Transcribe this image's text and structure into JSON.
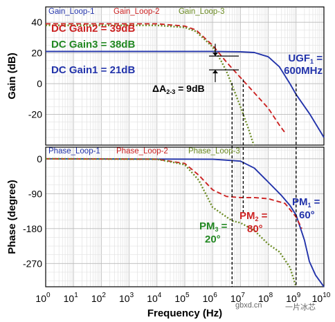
{
  "chart_data": [
    {
      "panel": "gain",
      "type": "line",
      "x_scale": "log",
      "xlim": [
        1,
        10000000000
      ],
      "ylabel": "Gain (dB)",
      "ylim": [
        -40,
        50
      ],
      "yticks": [
        "40",
        "20",
        "0",
        "-20"
      ],
      "grid": true,
      "legend_position": "top-left",
      "series": [
        {
          "name": "Gain_Loop-1",
          "color": "#2233aa",
          "dash": "solid",
          "points": [
            [
              1,
              21
            ],
            [
              100000,
              21
            ],
            [
              1000000,
              21
            ],
            [
              10000000,
              20.8
            ],
            [
              31600000,
              20.3
            ],
            [
              100000000,
              17.5
            ],
            [
              251000000,
              11
            ],
            [
              600000000,
              0
            ],
            [
              1000000000,
              -7
            ],
            [
              3160000000,
              -20
            ],
            [
              10000000000,
              -35
            ]
          ]
        },
        {
          "name": "Gain_Loop-2",
          "color": "#cc2222",
          "dash": "dashed",
          "points": [
            [
              1,
              39
            ],
            [
              10000,
              39
            ],
            [
              100000,
              37.5
            ],
            [
              251000,
              35
            ],
            [
              1000000,
              25
            ],
            [
              3160000,
              14
            ],
            [
              10000000,
              4
            ],
            [
              31600000,
              -6
            ],
            [
              100000000,
              -16
            ],
            [
              251000000,
              -27
            ],
            [
              400000000,
              -32
            ]
          ]
        },
        {
          "name": "Gain_Loop-3",
          "color": "#6a8a22",
          "dash": "dotted",
          "points": [
            [
              1,
              38
            ],
            [
              10000,
              38
            ],
            [
              100000,
              36.7
            ],
            [
              251000,
              34
            ],
            [
              1000000,
              24
            ],
            [
              2000000,
              15
            ],
            [
              3160000,
              8
            ],
            [
              5000000,
              -1
            ],
            [
              10000000,
              -15
            ],
            [
              20000000,
              -30
            ],
            [
              30000000,
              -40
            ]
          ]
        }
      ],
      "annotations": [
        {
          "text": "DC Gain2 = 39dB",
          "color": "#cc2222"
        },
        {
          "text": "DC Gain3 = 38dB",
          "color": "#228822"
        },
        {
          "text": "DC Gain1 = 21dB",
          "color": "#2233aa"
        },
        {
          "text": "UGF",
          "sub": "1",
          "suffix": " =",
          "line2": "600MHz",
          "color": "#2233aa"
        },
        {
          "text": "ΔA",
          "sub": "2-3",
          "suffix": " = 9dB",
          "color": "#000000"
        }
      ]
    },
    {
      "panel": "phase",
      "type": "line",
      "x_scale": "log",
      "xlim": [
        1,
        10000000000
      ],
      "xlabel": "Frequency (Hz)",
      "xticks": [
        "10",
        "10",
        "10",
        "10",
        "10",
        "10",
        "10",
        "10",
        "10",
        "10",
        "10"
      ],
      "xtick_exponents": [
        "0",
        "1",
        "2",
        "3",
        "4",
        "5",
        "6",
        "7",
        "8",
        "9",
        "10"
      ],
      "ylabel": "Phase (degree)",
      "ylim": [
        -330,
        30
      ],
      "yticks": [
        "0",
        "-90",
        "-180",
        "-270"
      ],
      "grid": true,
      "legend_position": "top-left",
      "series": [
        {
          "name": "Phase_Loop-1",
          "color": "#2233aa",
          "dash": "solid",
          "points": [
            [
              1,
              0
            ],
            [
              1000000,
              -1
            ],
            [
              10000000,
              -6
            ],
            [
              31600000,
              -24
            ],
            [
              100000000,
              -60
            ],
            [
              300000000,
              -95
            ],
            [
              600000000,
              -120
            ],
            [
              1000000000,
              -145
            ],
            [
              2000000000,
              -210
            ],
            [
              3000000000,
              -265
            ],
            [
              5000000000,
              -300
            ],
            [
              10000000000,
              -330
            ]
          ]
        },
        {
          "name": "Phase_Loop-2",
          "color": "#cc2222",
          "dash": "dashed",
          "points": [
            [
              1,
              0
            ],
            [
              10000,
              -1
            ],
            [
              100000,
              -12
            ],
            [
              316000,
              -42
            ],
            [
              1000000,
              -80
            ],
            [
              3160000,
              -97
            ],
            [
              10000000,
              -100
            ],
            [
              31600000,
              -100
            ],
            [
              100000000,
              -103
            ],
            [
              400000000,
              -115
            ],
            [
              1000000000,
              -150
            ],
            [
              1600000000,
              -180
            ]
          ]
        },
        {
          "name": "Phase_Loop-3",
          "color": "#6a8a22",
          "dash": "dotted",
          "points": [
            [
              1,
              0
            ],
            [
              10000,
              -1
            ],
            [
              100000,
              -15
            ],
            [
              316000,
              -55
            ],
            [
              1000000,
              -125
            ],
            [
              5000000,
              -160
            ],
            [
              10000000,
              -165
            ],
            [
              31600000,
              -185
            ],
            [
              100000000,
              -220
            ],
            [
              251000000,
              -240
            ],
            [
              600000000,
              -280
            ],
            [
              1000000000,
              -330
            ]
          ]
        }
      ],
      "annotations": [
        {
          "text": "PM",
          "sub": "1",
          "suffix": " =",
          "line2": "60°",
          "color": "#2233aa"
        },
        {
          "text": "PM",
          "sub": "2",
          "suffix": " =",
          "line2": "80°",
          "color": "#cc2222"
        },
        {
          "text": "PM",
          "sub": "3",
          "suffix": " =",
          "line2": "20°",
          "color": "#228822"
        }
      ]
    }
  ],
  "watermarks": [
    "gbxd.cn",
    "一片冰芯"
  ]
}
